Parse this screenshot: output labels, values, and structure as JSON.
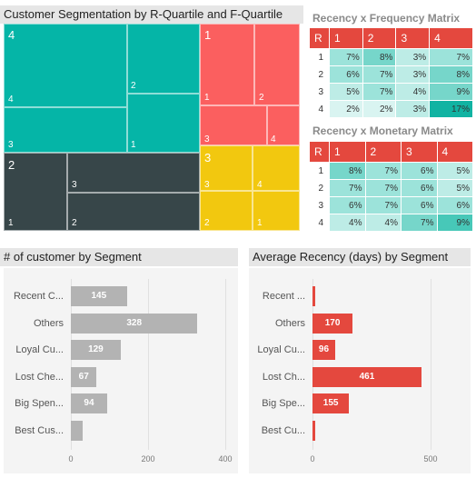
{
  "treemap": {
    "title": "Customer Segmentation by R-Quartile and F-Quartile",
    "colors": {
      "teal": "#05b5a7",
      "salmon": "#fb5f5f",
      "dark": "#374649",
      "yellow": "#f2c80f"
    },
    "groups": [
      {
        "id": "4",
        "color": "#05b5a7"
      },
      {
        "id": "1",
        "color": "#fb5f5f"
      },
      {
        "id": "2",
        "color": "#374649"
      },
      {
        "id": "3",
        "color": "#f2c80f"
      }
    ],
    "labels": {
      "g4": "4",
      "g4a": "4",
      "g4b": "2",
      "g4c": "3",
      "g4d": "1",
      "g1": "1",
      "g1a": "1",
      "g1b": "2",
      "g1c": "3",
      "g1d": "4",
      "g2": "2",
      "g2a": "3",
      "g2b": "1",
      "g2c": "2",
      "g3": "3",
      "g3a": "3",
      "g3b": "4",
      "g3c": "2",
      "g3d": "1"
    }
  },
  "matrix_rf": {
    "title": "Recency x Frequency Matrix",
    "corner": "R",
    "cols": [
      "1",
      "2",
      "3",
      "4"
    ],
    "rows": [
      {
        "label": "1",
        "cells": [
          "7%",
          "8%",
          "3%",
          "7%"
        ],
        "levels": [
          2,
          3,
          1,
          2
        ]
      },
      {
        "label": "2",
        "cells": [
          "6%",
          "7%",
          "3%",
          "8%"
        ],
        "levels": [
          2,
          2,
          1,
          3
        ]
      },
      {
        "label": "3",
        "cells": [
          "5%",
          "7%",
          "4%",
          "9%"
        ],
        "levels": [
          1,
          2,
          1,
          3
        ]
      },
      {
        "label": "4",
        "cells": [
          "2%",
          "2%",
          "3%",
          "17%"
        ],
        "levels": [
          0,
          0,
          1,
          5
        ]
      }
    ]
  },
  "matrix_rm": {
    "title": "Recency x Monetary Matrix",
    "corner": "R",
    "cols": [
      "1",
      "2",
      "3",
      "4"
    ],
    "rows": [
      {
        "label": "1",
        "cells": [
          "8%",
          "7%",
          "6%",
          "5%"
        ],
        "levels": [
          3,
          2,
          2,
          1
        ]
      },
      {
        "label": "2",
        "cells": [
          "7%",
          "7%",
          "6%",
          "5%"
        ],
        "levels": [
          2,
          2,
          2,
          1
        ]
      },
      {
        "label": "3",
        "cells": [
          "6%",
          "7%",
          "6%",
          "6%"
        ],
        "levels": [
          2,
          2,
          2,
          2
        ]
      },
      {
        "label": "4",
        "cells": [
          "4%",
          "4%",
          "7%",
          "9%"
        ],
        "levels": [
          1,
          1,
          3,
          4
        ]
      }
    ]
  },
  "heat_colors": [
    "#d9f4f1",
    "#bdece6",
    "#9ce3da",
    "#76d6ca",
    "#47c8b8",
    "#11b3a2"
  ],
  "chart_data": [
    {
      "type": "bar",
      "title": "# of customer by Segment",
      "categories": [
        "Recent C...",
        "Others",
        "Loyal Cu...",
        "Lost Che...",
        "Big Spen...",
        "Best Cus..."
      ],
      "values": [
        145,
        328,
        129,
        67,
        94,
        30
      ],
      "value_labels": [
        "145",
        "328",
        "129",
        "67",
        "94",
        ""
      ],
      "xlim": [
        0,
        400
      ],
      "ticks": [
        "0",
        "200",
        "400"
      ],
      "color": "#b3b3b3"
    },
    {
      "type": "bar",
      "title": "Average Recency (days) by Segment",
      "categories": [
        "Recent ...",
        "Others",
        "Loyal Cu...",
        "Lost Ch...",
        "Big Spe...",
        "Best Cu..."
      ],
      "values": [
        12,
        170,
        96,
        461,
        155,
        10
      ],
      "value_labels": [
        "",
        "170",
        "96",
        "461",
        "155",
        ""
      ],
      "xlim": [
        0,
        500
      ],
      "ticks": [
        "0",
        "500"
      ],
      "color": "#e4483e"
    }
  ]
}
